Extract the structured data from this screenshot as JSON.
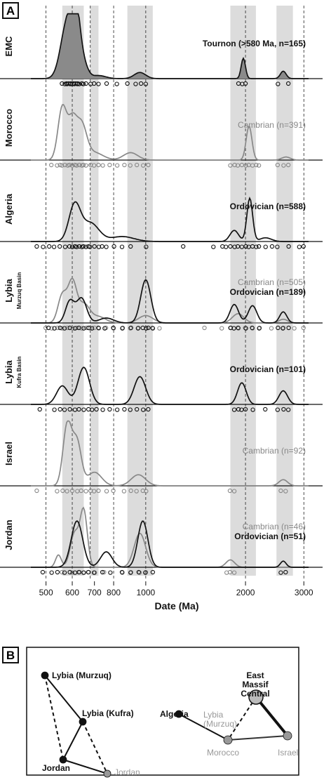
{
  "panel_a_letter": "A",
  "panel_b_letter": "B",
  "chart_data": {
    "type": "area",
    "x_scale": "log",
    "xlabel": "Date (Ma)",
    "xlim": [
      450,
      3100
    ],
    "x_ticks": [
      500,
      600,
      700,
      800,
      1000,
      2000,
      3000
    ],
    "x_tick_labels": [
      "500",
      "600",
      "700",
      "800",
      "1000",
      "2000",
      "3000"
    ],
    "dashed_vertical_lines": [
      500,
      600,
      680,
      800,
      1000,
      2000,
      3000
    ],
    "shaded_bands": [
      [
        560,
        650
      ],
      [
        680,
        720
      ],
      [
        880,
        1050
      ],
      [
        1800,
        2150
      ],
      [
        2480,
        2780
      ]
    ],
    "rows": [
      {
        "label": "EMC",
        "sublabel": "",
        "series": [
          {
            "name": "Tournon (>580 Ma, n=165)",
            "color": "#111111",
            "filled": true,
            "peaks": [
              [
                580,
                0.92,
                0.045
              ],
              [
                615,
                0.95,
                0.03
              ],
              [
                650,
                0.2,
                0.03
              ],
              [
                720,
                0.05,
                0.05
              ],
              [
                960,
                0.1,
                0.04
              ],
              [
                1970,
                0.33,
                0.015
              ],
              [
                2600,
                0.12,
                0.02
              ]
            ],
            "dots": [
              560,
              570,
              575,
              580,
              585,
              590,
              595,
              600,
              605,
              610,
              615,
              620,
              625,
              630,
              640,
              650,
              660,
              680,
              700,
              720,
              760,
              820,
              880,
              930,
              970,
              1000,
              1900,
              1960,
              2000,
              2500,
              2700
            ]
          }
        ]
      },
      {
        "label": "Morocco",
        "sublabel": "",
        "series": [
          {
            "name": "Cambrian (n=391)",
            "color": "#888888",
            "filled": false,
            "peaks": [
              [
                560,
                0.85,
                0.03
              ],
              [
                600,
                0.6,
                0.03
              ],
              [
                640,
                0.55,
                0.035
              ],
              [
                700,
                0.12,
                0.06
              ],
              [
                900,
                0.12,
                0.05
              ],
              [
                2050,
                0.55,
                0.02
              ],
              [
                2650,
                0.05,
                0.03
              ]
            ],
            "dots": [
              520,
              540,
              550,
              560,
              570,
              580,
              590,
              600,
              610,
              620,
              630,
              640,
              650,
              660,
              680,
              700,
              720,
              740,
              780,
              820,
              860,
              900,
              940,
              980,
              1020,
              1800,
              1850,
              1900,
              1950,
              2000,
              2050,
              2100,
              2150,
              2200,
              2500,
              2600,
              2700
            ]
          }
        ]
      },
      {
        "label": "Algeria",
        "sublabel": "",
        "series": [
          {
            "name": "Ordovician (n=588)",
            "color": "#111111",
            "filled": false,
            "peaks": [
              [
                610,
                0.58,
                0.04
              ],
              [
                680,
                0.3,
                0.06
              ],
              [
                850,
                0.08,
                0.08
              ],
              [
                1850,
                0.18,
                0.03
              ],
              [
                2060,
                0.7,
                0.02
              ],
              [
                2300,
                0.06,
                0.04
              ]
            ],
            "dots": [
              470,
              490,
              510,
              530,
              550,
              570,
              590,
              600,
              610,
              620,
              630,
              640,
              650,
              660,
              670,
              680,
              700,
              720,
              740,
              760,
              800,
              850,
              900,
              1000,
              1300,
              1600,
              1700,
              1750,
              1800,
              1850,
              1900,
              1950,
              2000,
              2050,
              2100,
              2150,
              2200,
              2300,
              2400,
              2500,
              2700,
              2900,
              3000
            ]
          }
        ]
      },
      {
        "label": "Lybia",
        "sublabel": "Murzuq Basin",
        "series": [
          {
            "name": "Cambrian (n=505)",
            "color": "#888888",
            "filled": false,
            "peaks": [
              [
                560,
                0.45,
                0.03
              ],
              [
                600,
                0.65,
                0.03
              ],
              [
                650,
                0.3,
                0.04
              ],
              [
                720,
                0.1,
                0.05
              ],
              [
                1000,
                0.12,
                0.05
              ],
              [
                1900,
                0.15,
                0.04
              ],
              [
                2600,
                0.06,
                0.03
              ]
            ],
            "dots": [
              500,
              520,
              540,
              560,
              580,
              600,
              620,
              640,
              660,
              680,
              700,
              720,
              760,
              800,
              850,
              900,
              950,
              1000,
              1050,
              1100,
              1500,
              1700,
              1800,
              1900,
              2000,
              2100,
              2200,
              2400,
              2600,
              2800,
              3000
            ]
          },
          {
            "name": "Ordovician (n=189)",
            "color": "#111111",
            "filled": false,
            "peaks": [
              [
                590,
                0.35,
                0.03
              ],
              [
                640,
                0.4,
                0.035
              ],
              [
                760,
                0.08,
                0.05
              ],
              [
                1000,
                0.7,
                0.035
              ],
              [
                1850,
                0.3,
                0.03
              ],
              [
                2100,
                0.28,
                0.03
              ],
              [
                2600,
                0.18,
                0.025
              ]
            ],
            "dots": [
              510,
              530,
              550,
              570,
              590,
              610,
              630,
              650,
              670,
              690,
              720,
              750,
              800,
              850,
              900,
              950,
              980,
              1000,
              1020,
              1050,
              1800,
              1850,
              1900,
              2000,
              2100,
              2200,
              2500,
              2600,
              2700
            ]
          }
        ]
      },
      {
        "label": "Lybia",
        "sublabel": "Kufra Basin",
        "series": [
          {
            "name": "Ordovician (n=101)",
            "color": "#111111",
            "filled": false,
            "peaks": [
              [
                560,
                0.3,
                0.04
              ],
              [
                650,
                0.6,
                0.04
              ],
              [
                960,
                0.45,
                0.04
              ],
              [
                1950,
                0.35,
                0.03
              ],
              [
                2600,
                0.22,
                0.03
              ]
            ],
            "dots": [
              480,
              530,
              550,
              570,
              590,
              610,
              630,
              650,
              670,
              690,
              710,
              740,
              780,
              820,
              860,
              900,
              940,
              980,
              1020,
              1850,
              1900,
              1950,
              2000,
              2100,
              2300,
              2500,
              2600,
              2700
            ]
          }
        ]
      },
      {
        "label": "Israel",
        "sublabel": "",
        "series": [
          {
            "name": "Cambrian (n=92)",
            "color": "#888888",
            "filled": false,
            "peaks": [
              [
                580,
                1.0,
                0.03
              ],
              [
                620,
                0.7,
                0.03
              ],
              [
                700,
                0.22,
                0.05
              ],
              [
                950,
                0.18,
                0.05
              ],
              [
                2600,
                0.1,
                0.03
              ]
            ],
            "dots": [
              470,
              540,
              560,
              580,
              600,
              620,
              640,
              660,
              680,
              700,
              720,
              760,
              800,
              860,
              900,
              940,
              980,
              1000,
              1800,
              1850,
              2550,
              2650
            ]
          }
        ]
      },
      {
        "label": "Jordan",
        "sublabel": "",
        "series": [
          {
            "name": "Cambrian (n=46)",
            "color": "#888888",
            "filled": false,
            "peaks": [
              [
                545,
                0.2,
                0.02
              ],
              [
                610,
                0.55,
                0.03
              ],
              [
                650,
                0.9,
                0.025
              ],
              [
                960,
                0.55,
                0.04
              ],
              [
                1800,
                0.12,
                0.03
              ]
            ],
            "dots": [
              560,
              600,
              630,
              650,
              670,
              700,
              750,
              850,
              900,
              960,
              1000,
              1750,
              1800,
              1850
            ]
          },
          {
            "name": "Ordovician (n=51)",
            "color": "#111111",
            "filled": false,
            "peaks": [
              [
                620,
                0.75,
                0.04
              ],
              [
                760,
                0.25,
                0.04
              ],
              [
                980,
                0.75,
                0.035
              ],
              [
                2600,
                0.1,
                0.02
              ]
            ],
            "dots": [
              490,
              520,
              540,
              570,
              590,
              610,
              630,
              650,
              670,
              700,
              740,
              780,
              850,
              900,
              950,
              1000,
              1050,
              2550,
              2650
            ]
          }
        ]
      }
    ]
  },
  "panel_b": {
    "nodes": [
      {
        "id": "lybia-murzuq-b",
        "label": "Lybia (Murzuq)",
        "color": "#111111",
        "text_color": "#111111"
      },
      {
        "id": "lybia-kufra-b",
        "label": "Lybia (Kufra)",
        "color": "#111111",
        "text_color": "#111111"
      },
      {
        "id": "jordan-b",
        "label": "Jordan",
        "color": "#111111",
        "text_color": "#111111"
      },
      {
        "id": "jordan-gray-b",
        "label": "Jordan",
        "color": "#999999",
        "text_color": "#999999"
      },
      {
        "id": "algeria-b",
        "label": "Algeria",
        "color": "#111111",
        "text_color": "#111111"
      },
      {
        "id": "lybia-murzuq-gray-b",
        "label": "Lybia (Murzuq)",
        "color": "#999999",
        "text_color": "#999999"
      },
      {
        "id": "emc-b",
        "label": "East Massif Central",
        "color": "#bbbbbb",
        "text_color": "#111111"
      },
      {
        "id": "morocco-b",
        "label": "Morocco",
        "color": "#999999",
        "text_color": "#999999"
      },
      {
        "id": "israel-b",
        "label": "Israel",
        "color": "#999999",
        "text_color": "#999999"
      }
    ],
    "edges": [
      {
        "from": "lybia-murzuq-b",
        "to": "lybia-kufra-b",
        "style": "solid"
      },
      {
        "from": "lybia-murzuq-b",
        "to": "jordan-b",
        "style": "dashed"
      },
      {
        "from": "lybia-kufra-b",
        "to": "jordan-b",
        "style": "solid"
      },
      {
        "from": "lybia-kufra-b",
        "to": "jordan-gray-b",
        "style": "dashed"
      },
      {
        "from": "jordan-b",
        "to": "jordan-gray-b",
        "style": "solid"
      },
      {
        "from": "algeria-b",
        "to": "morocco-b",
        "style": "solid"
      },
      {
        "from": "emc-b",
        "to": "israel-b",
        "style": "solid"
      },
      {
        "from": "emc-b",
        "to": "morocco-b",
        "style": "dashed"
      },
      {
        "from": "morocco-b",
        "to": "israel-b",
        "style": "solid"
      }
    ]
  }
}
